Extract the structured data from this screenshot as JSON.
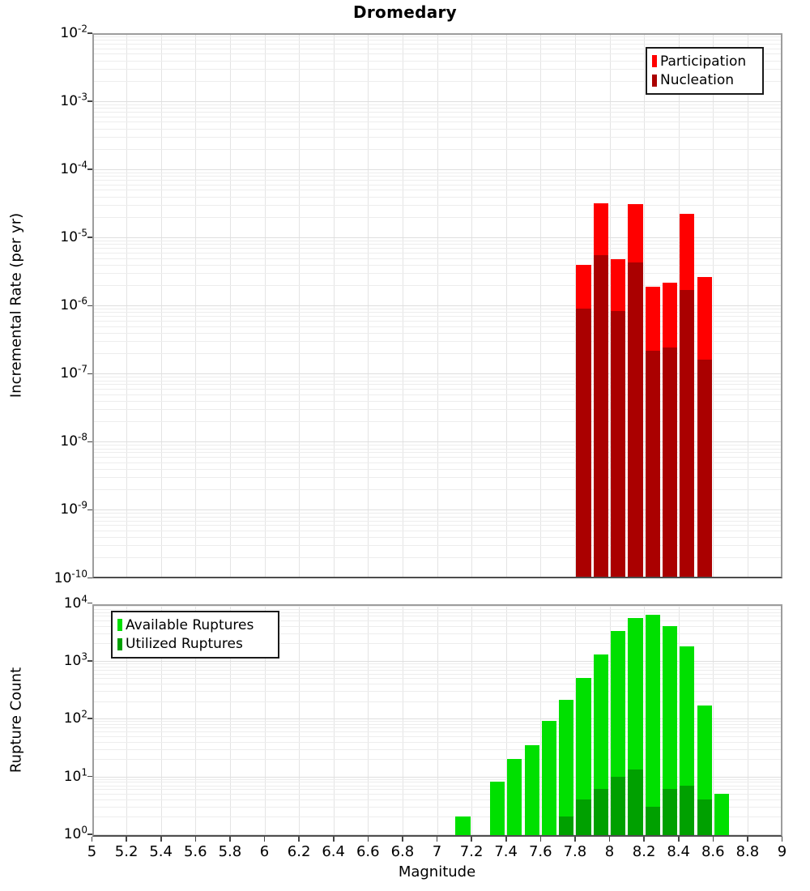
{
  "title": "Dromedary",
  "axes": {
    "xlabel": "Magnitude",
    "top_ylabel": "Incremental Rate (per yr)",
    "bottom_ylabel": "Rupture Count",
    "xtick_labels": [
      "5",
      "5.2",
      "5.4",
      "5.6",
      "5.8",
      "6",
      "6.2",
      "6.4",
      "6.6",
      "6.8",
      "7",
      "7.2",
      "7.4",
      "7.6",
      "7.8",
      "8",
      "8.2",
      "8.4",
      "8.6",
      "8.8",
      "9"
    ],
    "top_ytick_exponents": [
      -2,
      -3,
      -4,
      -5,
      -6,
      -7,
      -8,
      -9,
      -10
    ],
    "bottom_ytick_exponents": [
      4,
      3,
      2,
      1,
      0
    ]
  },
  "colors": {
    "participation": "#ff0000",
    "nucleation": "#aa0000",
    "available": "#00e000",
    "utilized": "#00a000"
  },
  "legends": {
    "top": {
      "position": "top-right",
      "items": [
        {
          "label": "Participation",
          "color": "#ff0000"
        },
        {
          "label": "Nucleation",
          "color": "#aa0000"
        }
      ]
    },
    "bottom": {
      "position": "top-left",
      "items": [
        {
          "label": "Available Ruptures",
          "color": "#00e000"
        },
        {
          "label": "Utilized Ruptures",
          "color": "#00a000"
        }
      ]
    }
  },
  "chart_data": [
    {
      "type": "bar",
      "panel": "incremental-rate",
      "title": "Dromedary",
      "xlabel": "Magnitude",
      "ylabel": "Incremental Rate (per yr)",
      "x_range": [
        5,
        9
      ],
      "y_range": [
        1e-10,
        0.01
      ],
      "y_scale": "log",
      "grid": true,
      "bin_width": 0.1,
      "legend_position": "top-right",
      "series": [
        {
          "name": "Participation",
          "color": "#ff0000",
          "bin_centers": [
            7.85,
            7.95,
            8.05,
            8.15,
            8.25,
            8.35,
            8.45,
            8.55
          ],
          "values": [
            4e-06,
            3.2e-05,
            4.8e-06,
            3.1e-05,
            1.9e-06,
            2.2e-06,
            2.2e-05,
            2.6e-06
          ]
        },
        {
          "name": "Nucleation",
          "color": "#aa0000",
          "bin_centers": [
            7.85,
            7.95,
            8.05,
            8.15,
            8.25,
            8.35,
            8.45,
            8.55
          ],
          "values": [
            9e-07,
            5.5e-06,
            8.3e-07,
            4.3e-06,
            2.2e-07,
            2.4e-07,
            1.7e-06,
            1.6e-07
          ]
        }
      ]
    },
    {
      "type": "bar",
      "panel": "rupture-count",
      "xlabel": "Magnitude",
      "ylabel": "Rupture Count",
      "x_range": [
        5,
        9
      ],
      "y_range": [
        1,
        10000.0
      ],
      "y_scale": "log",
      "grid": true,
      "bin_width": 0.1,
      "legend_position": "top-left",
      "series": [
        {
          "name": "Available Ruptures",
          "color": "#00e000",
          "bin_centers": [
            7.15,
            7.35,
            7.45,
            7.55,
            7.65,
            7.75,
            7.85,
            7.95,
            8.05,
            8.15,
            8.25,
            8.35,
            8.45,
            8.55,
            8.65
          ],
          "values": [
            2,
            8,
            20,
            35,
            90,
            210,
            500,
            1300,
            3300,
            5500,
            6300,
            4000,
            1800,
            170,
            5
          ]
        },
        {
          "name": "Utilized Ruptures",
          "color": "#00a000",
          "bin_centers": [
            7.75,
            7.85,
            7.95,
            8.05,
            8.15,
            8.25,
            8.35,
            8.45,
            8.55
          ],
          "values": [
            2,
            4,
            6,
            10,
            13,
            3,
            6,
            7,
            4
          ]
        }
      ]
    }
  ]
}
